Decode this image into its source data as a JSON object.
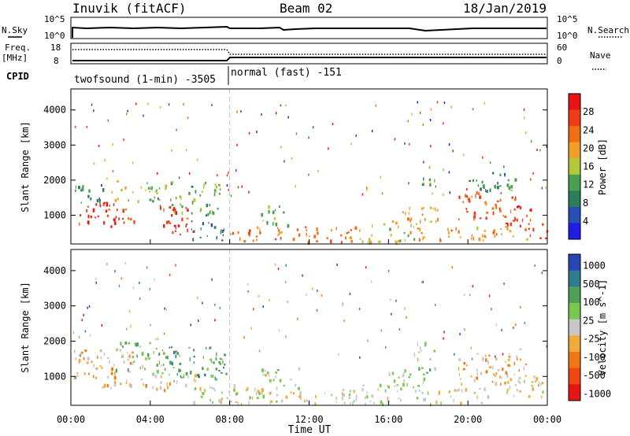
{
  "header": {
    "station": "Inuvik (fitACF)",
    "beam": "Beam 02",
    "date": "18/Jan/2019"
  },
  "summary": {
    "nsky_label": "N.Sky",
    "freq_label": "Freq.",
    "freq_unit": "[MHz]",
    "cpid_label": "CPID",
    "nsearch_label": "N.Search",
    "nave_label": "Nave",
    "left_ticks_top": [
      "10^5",
      "10^0"
    ],
    "right_ticks_top": [
      "10^5",
      "10^0"
    ],
    "freq_ticks": [
      "18",
      "8"
    ],
    "nave_ticks": [
      "60",
      "0"
    ],
    "cpid_segments": [
      {
        "label": "twofsound (1-min) -3505",
        "start_hour": 0,
        "end_hour": 8
      },
      {
        "label": "normal (fast) -151",
        "start_hour": 8,
        "end_hour": 24
      }
    ]
  },
  "colors": {
    "power": [
      "#1e1ee6",
      "#2850b4",
      "#2d7d5a",
      "#4ba050",
      "#b4c83c",
      "#f0a028",
      "#f06e14",
      "#f03c14",
      "#e61414"
    ],
    "velocity": [
      "#e61414",
      "#f04614",
      "#f07814",
      "#f0aa3c",
      "#c8c8c8",
      "#78c850",
      "#50a05a",
      "#2d7d8c",
      "#2846b4"
    ],
    "mode_change_line": "#c0c0c0"
  },
  "chart_data": [
    {
      "type": "heatmap",
      "title": "Power",
      "xlabel": "",
      "ylabel": "Slant Range [km]",
      "x_ticks": [
        "00:00",
        "04:00",
        "08:00",
        "12:00",
        "16:00",
        "20:00",
        "00:00"
      ],
      "xlim": [
        0,
        24
      ],
      "y_ticks": [
        1000,
        2000,
        3000,
        4000
      ],
      "ylim": [
        180,
        4600
      ],
      "colorbar": {
        "label": "Power [dB]",
        "ticks": [
          "4",
          "8",
          "12",
          "16",
          "20",
          "24",
          "28"
        ],
        "range": [
          0,
          30
        ]
      },
      "blobs": [
        {
          "t0": 0.1,
          "t1": 3.2,
          "r0": 700,
          "r1": 1400,
          "v": 26
        },
        {
          "t0": 0.1,
          "t1": 1.6,
          "r0": 1300,
          "r1": 1900,
          "v": 10
        },
        {
          "t0": 2.2,
          "t1": 4.8,
          "r0": 1400,
          "r1": 2000,
          "v": 15
        },
        {
          "t0": 4.4,
          "t1": 6.2,
          "r0": 450,
          "r1": 1350,
          "v": 27
        },
        {
          "t0": 5.0,
          "t1": 7.5,
          "r0": 1000,
          "r1": 2000,
          "v": 12
        },
        {
          "t0": 6.0,
          "t1": 7.8,
          "r0": 300,
          "r1": 900,
          "v": 8
        },
        {
          "t0": 8.0,
          "t1": 14.5,
          "r0": 250,
          "r1": 700,
          "v": 22
        },
        {
          "t0": 9.5,
          "t1": 11.0,
          "r0": 700,
          "r1": 1300,
          "v": 12
        },
        {
          "t0": 14.5,
          "t1": 17.5,
          "r0": 250,
          "r1": 800,
          "v": 14
        },
        {
          "t0": 16.0,
          "t1": 18.5,
          "r0": 800,
          "r1": 1300,
          "v": 18
        },
        {
          "t0": 17.2,
          "t1": 18.3,
          "r0": 1800,
          "r1": 2200,
          "v": 11
        },
        {
          "t0": 19.5,
          "t1": 22.5,
          "r0": 900,
          "r1": 1700,
          "v": 23
        },
        {
          "t0": 21.5,
          "t1": 23.2,
          "r0": 700,
          "r1": 1300,
          "v": 27
        },
        {
          "t0": 23.0,
          "t1": 24.0,
          "r0": 300,
          "r1": 800,
          "v": 24
        },
        {
          "t0": 20.0,
          "t1": 22.5,
          "r0": 1700,
          "r1": 2300,
          "v": 10
        },
        {
          "t0": 17.0,
          "t1": 23.0,
          "r0": 300,
          "r1": 700,
          "v": 20
        }
      ]
    },
    {
      "type": "heatmap",
      "title": "Velocity",
      "xlabel": "Time UT",
      "ylabel": "Slant Range [km]",
      "x_ticks": [
        "00:00",
        "04:00",
        "08:00",
        "12:00",
        "16:00",
        "20:00",
        "00:00"
      ],
      "xlim": [
        0,
        24
      ],
      "y_ticks": [
        1000,
        2000,
        3000,
        4000
      ],
      "ylim": [
        180,
        4600
      ],
      "colorbar": {
        "label": "Velocity [m s^-1]",
        "ticks": [
          "1000",
          "500",
          "100",
          "25",
          "-25",
          "-100",
          "-500",
          "-1000"
        ],
        "range": [
          -1200,
          1200
        ]
      },
      "blobs": [
        {
          "t0": 0.1,
          "t1": 3.2,
          "r0": 700,
          "r1": 1800,
          "v": -300
        },
        {
          "t0": 2.2,
          "t1": 4.8,
          "r0": 1100,
          "r1": 2000,
          "v": 300
        },
        {
          "t0": 4.4,
          "t1": 7.8,
          "r0": 900,
          "r1": 1900,
          "v": 600
        },
        {
          "t0": 3.5,
          "t1": 6.5,
          "r0": 600,
          "r1": 1100,
          "v": -200
        },
        {
          "t0": 6.0,
          "t1": 9.5,
          "r0": 250,
          "r1": 800,
          "v": 0
        },
        {
          "t0": 8.0,
          "t1": 14.5,
          "r0": 250,
          "r1": 700,
          "v": -80
        },
        {
          "t0": 9.5,
          "t1": 11.5,
          "r0": 700,
          "r1": 1300,
          "v": 150
        },
        {
          "t0": 14.5,
          "t1": 17.5,
          "r0": 250,
          "r1": 800,
          "v": 120
        },
        {
          "t0": 16.0,
          "t1": 18.5,
          "r0": 800,
          "r1": 1300,
          "v": 200
        },
        {
          "t0": 17.2,
          "t1": 18.3,
          "r0": 1500,
          "r1": 2000,
          "v": 300
        },
        {
          "t0": 19.5,
          "t1": 23.0,
          "r0": 800,
          "r1": 1800,
          "v": -250
        },
        {
          "t0": 21.5,
          "t1": 24.0,
          "r0": 400,
          "r1": 1100,
          "v": -150
        },
        {
          "t0": 17.5,
          "t1": 21.0,
          "r0": 250,
          "r1": 700,
          "v": 0
        }
      ]
    }
  ]
}
